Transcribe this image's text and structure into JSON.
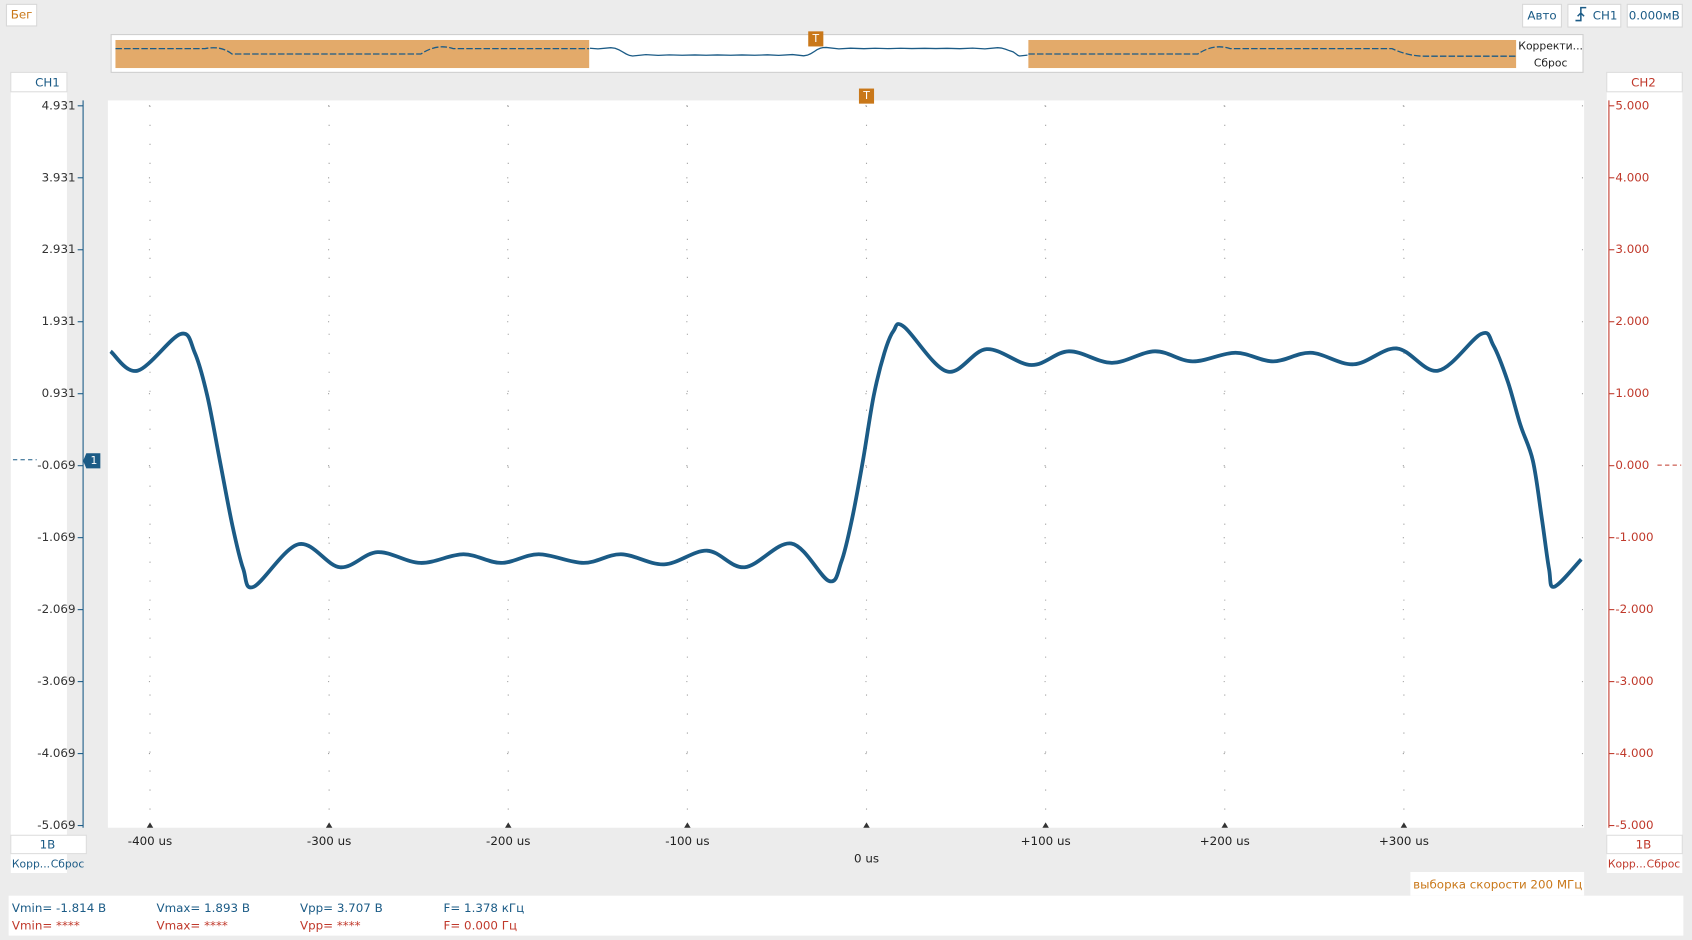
{
  "toolbar": {
    "status": "Бег",
    "mode": "Авто",
    "trigger_source": "CH1",
    "trigger_level": "0.000мВ"
  },
  "overview": {
    "buttons": [
      "Корректи...",
      "Сброс"
    ]
  },
  "markers": {
    "trigger": "T",
    "ch1": "1"
  },
  "channels": {
    "left": {
      "name": "CH1",
      "scale": "1В",
      "buttons": [
        "Корр...",
        "Сброс"
      ]
    },
    "right": {
      "name": "CH2",
      "scale": "1В",
      "buttons": [
        "Корр...",
        "Сброс"
      ]
    }
  },
  "sample_rate": "выборка скорости 200 МГц",
  "measurements": [
    [
      "Vmin= -1.814 В",
      "Vmax= 1.893 В",
      "Vpp= 3.707 В",
      "F= 1.378 кГц"
    ],
    [
      "Vmin= ****",
      "Vmax= ****",
      "Vpp= ****",
      "F= 0.000 Гц"
    ]
  ],
  "chart_data": {
    "type": "line",
    "x": [
      -422,
      -407,
      -383,
      -375,
      -368,
      -361,
      -354,
      -348,
      -342,
      -317,
      -294,
      -273,
      -249,
      -225,
      -204,
      -183,
      -158,
      -137,
      -113,
      -89,
      -68,
      -42,
      -21,
      -14,
      -8,
      -2,
      4,
      10,
      15,
      21,
      45,
      67,
      92,
      113,
      137,
      161,
      182,
      206,
      227,
      248,
      272,
      296,
      319,
      343,
      350,
      358,
      365,
      372,
      377,
      381,
      384,
      399
    ],
    "series": [
      {
        "name": "CH1",
        "color": "#1b5b86",
        "values": [
          1.52,
          1.25,
          1.76,
          1.5,
          0.9,
          0.0,
          -0.9,
          -1.5,
          -1.75,
          -1.16,
          -1.48,
          -1.27,
          -1.42,
          -1.3,
          -1.42,
          -1.3,
          -1.42,
          -1.3,
          -1.44,
          -1.25,
          -1.48,
          -1.15,
          -1.67,
          -1.4,
          -0.8,
          0.0,
          0.9,
          1.5,
          1.8,
          1.86,
          1.24,
          1.55,
          1.33,
          1.52,
          1.36,
          1.52,
          1.38,
          1.5,
          1.38,
          1.5,
          1.34,
          1.56,
          1.25,
          1.76,
          1.6,
          1.1,
          0.5,
          0.0,
          -0.8,
          -1.5,
          -1.75,
          -1.37
        ]
      }
    ],
    "xlim": [
      -423.5,
      400.6
    ],
    "xticks": [
      {
        "value": -400,
        "label": "-400 us"
      },
      {
        "value": -300,
        "label": "-300 us"
      },
      {
        "value": -200,
        "label": "-200 us"
      },
      {
        "value": -100,
        "label": "-100 us"
      },
      {
        "value": 0,
        "label": "0 us"
      },
      {
        "value": 100,
        "label": "+100 us"
      },
      {
        "value": 200,
        "label": "+200 us"
      },
      {
        "value": 300,
        "label": "+300 us"
      }
    ],
    "ylim": [
      -5.069,
      4.931
    ],
    "yticks": [
      4.931,
      3.931,
      2.931,
      1.931,
      0.931,
      -0.069,
      -1.069,
      -2.069,
      -3.069,
      -4.069,
      -5.069
    ],
    "y2lim": [
      -5,
      5
    ],
    "y2ticks": [
      {
        "value": 5,
        "label": "5.000"
      },
      {
        "value": 4,
        "label": "4.000"
      },
      {
        "value": 3,
        "label": "3.000"
      },
      {
        "value": 2,
        "label": "2.000"
      },
      {
        "value": 1,
        "label": "1.000"
      },
      {
        "value": 0,
        "label": "0.000"
      },
      {
        "value": -1,
        "label": "-1.000"
      },
      {
        "value": -2,
        "label": "-2.000"
      },
      {
        "value": -3,
        "label": "-3.000"
      },
      {
        "value": -4,
        "label": "-4.000"
      },
      {
        "value": -5,
        "label": "-5.000"
      }
    ],
    "y_color": "#1b5b86",
    "y2_color": "#c0392b",
    "grid": true
  }
}
